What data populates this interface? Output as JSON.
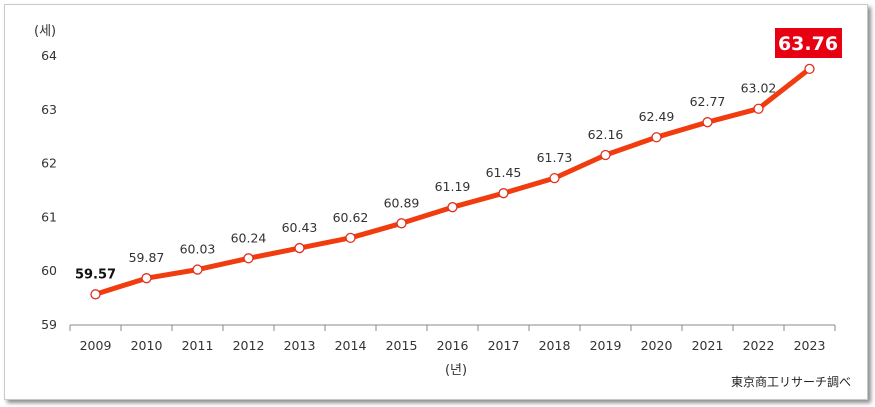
{
  "chart_data": {
    "type": "line",
    "ylabel": "(세)",
    "xlabel": "(년)",
    "source": "東京商工リサーチ調べ",
    "ylim": [
      59,
      64
    ],
    "yticks": [
      59,
      60,
      61,
      62,
      63,
      64
    ],
    "grid": false,
    "categories": [
      "2009",
      "2010",
      "2011",
      "2012",
      "2013",
      "2014",
      "2015",
      "2016",
      "2017",
      "2018",
      "2019",
      "2020",
      "2021",
      "2022",
      "2023"
    ],
    "values": [
      59.57,
      59.87,
      60.03,
      60.24,
      60.43,
      60.62,
      60.89,
      61.19,
      61.45,
      61.73,
      62.16,
      62.49,
      62.77,
      63.02,
      63.76
    ],
    "data_labels": [
      "59.57",
      "59.87",
      "60.03",
      "60.24",
      "60.43",
      "60.62",
      "60.89",
      "61.19",
      "61.45",
      "61.73",
      "62.16",
      "62.49",
      "62.77",
      "63.02",
      "63.76"
    ],
    "highlight_label": "63.76",
    "colors": {
      "line": "#f03c0f",
      "marker_fill": "#ffffff",
      "marker_stroke": "#e0301e",
      "highlight_bg": "#e60012",
      "axis": "#888888"
    }
  }
}
